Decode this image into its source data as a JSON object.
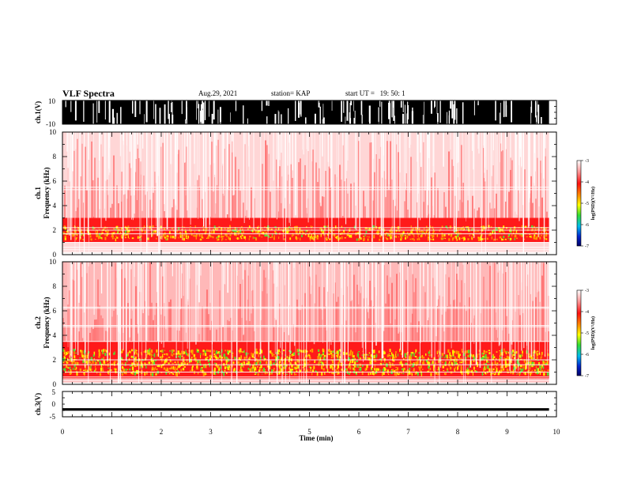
{
  "header": {
    "title": "VLF Spectra",
    "date": "Aug.29, 2021",
    "station": "station= KAP",
    "start_label": "start  UT  =",
    "start_value": "19: 50: 1"
  },
  "colors": {
    "waveform": "#000000",
    "colormap": [
      "#ffffff",
      "#ff2020",
      "#ff9900",
      "#ffff00",
      "#33dd33",
      "#00bbee",
      "#0022cc",
      "#000088"
    ]
  },
  "chart_data": {
    "type": "heatmap",
    "x": {
      "label": "Time  (min)",
      "range": [
        0,
        10
      ],
      "ticks": [
        0,
        1,
        2,
        3,
        4,
        5,
        6,
        7,
        8,
        9,
        10
      ],
      "data_end": 9.85
    },
    "panels": [
      {
        "name": "ch1-waveform",
        "type": "line",
        "ylabel": "ch.1(V)",
        "ylim": [
          -10,
          10
        ],
        "yticks": [
          "10",
          "-10"
        ],
        "description": "saturated black broadband waveform with white gaps"
      },
      {
        "name": "ch1-spectrogram",
        "type": "heatmap",
        "ylabel": "ch.1\nFrequency  (kHz)",
        "ylim": [
          0,
          10
        ],
        "yticks": [
          0,
          2,
          4,
          6,
          8,
          10
        ],
        "dense_band_khz": [
          1.0,
          3.0
        ],
        "bright_band_khz": [
          1.2,
          2.3
        ],
        "gap_lines_khz": [
          0.2,
          0.4,
          0.6,
          1.0,
          1.7,
          2.0,
          2.2,
          5.3,
          5.5
        ],
        "colorbar": {
          "label": "log(PSD)(V²/Hz)",
          "ticks": [
            "-3",
            "-4",
            "-5",
            "-6",
            "-7"
          ],
          "range": [
            -7,
            -3
          ]
        }
      },
      {
        "name": "ch2-spectrogram",
        "type": "heatmap",
        "ylabel": "ch.2\nFrequency  (kHz)",
        "ylim": [
          0,
          10
        ],
        "yticks": [
          0,
          2,
          4,
          6,
          8,
          10
        ],
        "dense_band_khz": [
          0.5,
          3.5
        ],
        "bright_band_khz": [
          0.8,
          2.8
        ],
        "gap_lines_khz": [
          0.3,
          0.6,
          1.0,
          1.6,
          2.0,
          3.5,
          4.7,
          4.8,
          6.2,
          6.3
        ],
        "colorbar": {
          "label": "log(PSD)(V²/Hz)",
          "ticks": [
            "-3",
            "-4",
            "-5",
            "-6",
            "-7"
          ],
          "range": [
            -7,
            -3
          ]
        }
      },
      {
        "name": "ch3-waveform",
        "type": "line",
        "ylabel": "ch.3(V)",
        "ylim": [
          -5,
          5
        ],
        "yticks": [
          "5",
          "0",
          "-5"
        ],
        "description": "near-constant trace close to -2 V"
      }
    ]
  }
}
